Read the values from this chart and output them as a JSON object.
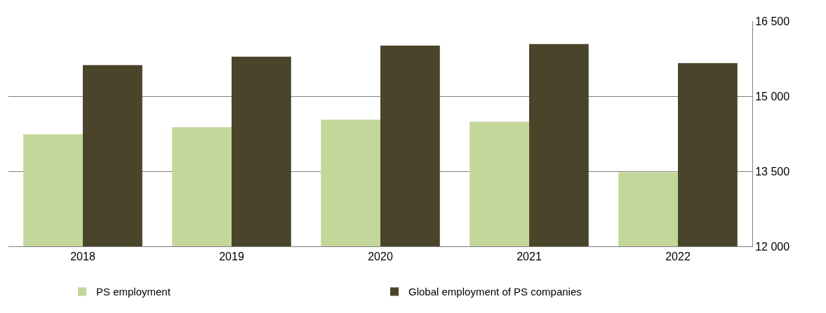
{
  "chart_data": {
    "type": "bar",
    "categories": [
      "2018",
      "2019",
      "2020",
      "2021",
      "2022"
    ],
    "series": [
      {
        "name": "PS employment",
        "color": "#c4d79b",
        "values": [
          14240,
          14380,
          14530,
          14490,
          13480
        ]
      },
      {
        "name": "Global employment of PS companies",
        "color": "#4a452a",
        "values": [
          15620,
          15790,
          16010,
          16040,
          15660
        ]
      }
    ],
    "ylim": [
      12000,
      16500
    ],
    "yticks": [
      {
        "value": 12000,
        "label": "12 000"
      },
      {
        "value": 13500,
        "label": "13 500"
      },
      {
        "value": 15000,
        "label": "15 000"
      },
      {
        "value": 16500,
        "label": "16 500"
      }
    ],
    "grid": "y",
    "legend": "bottom"
  }
}
